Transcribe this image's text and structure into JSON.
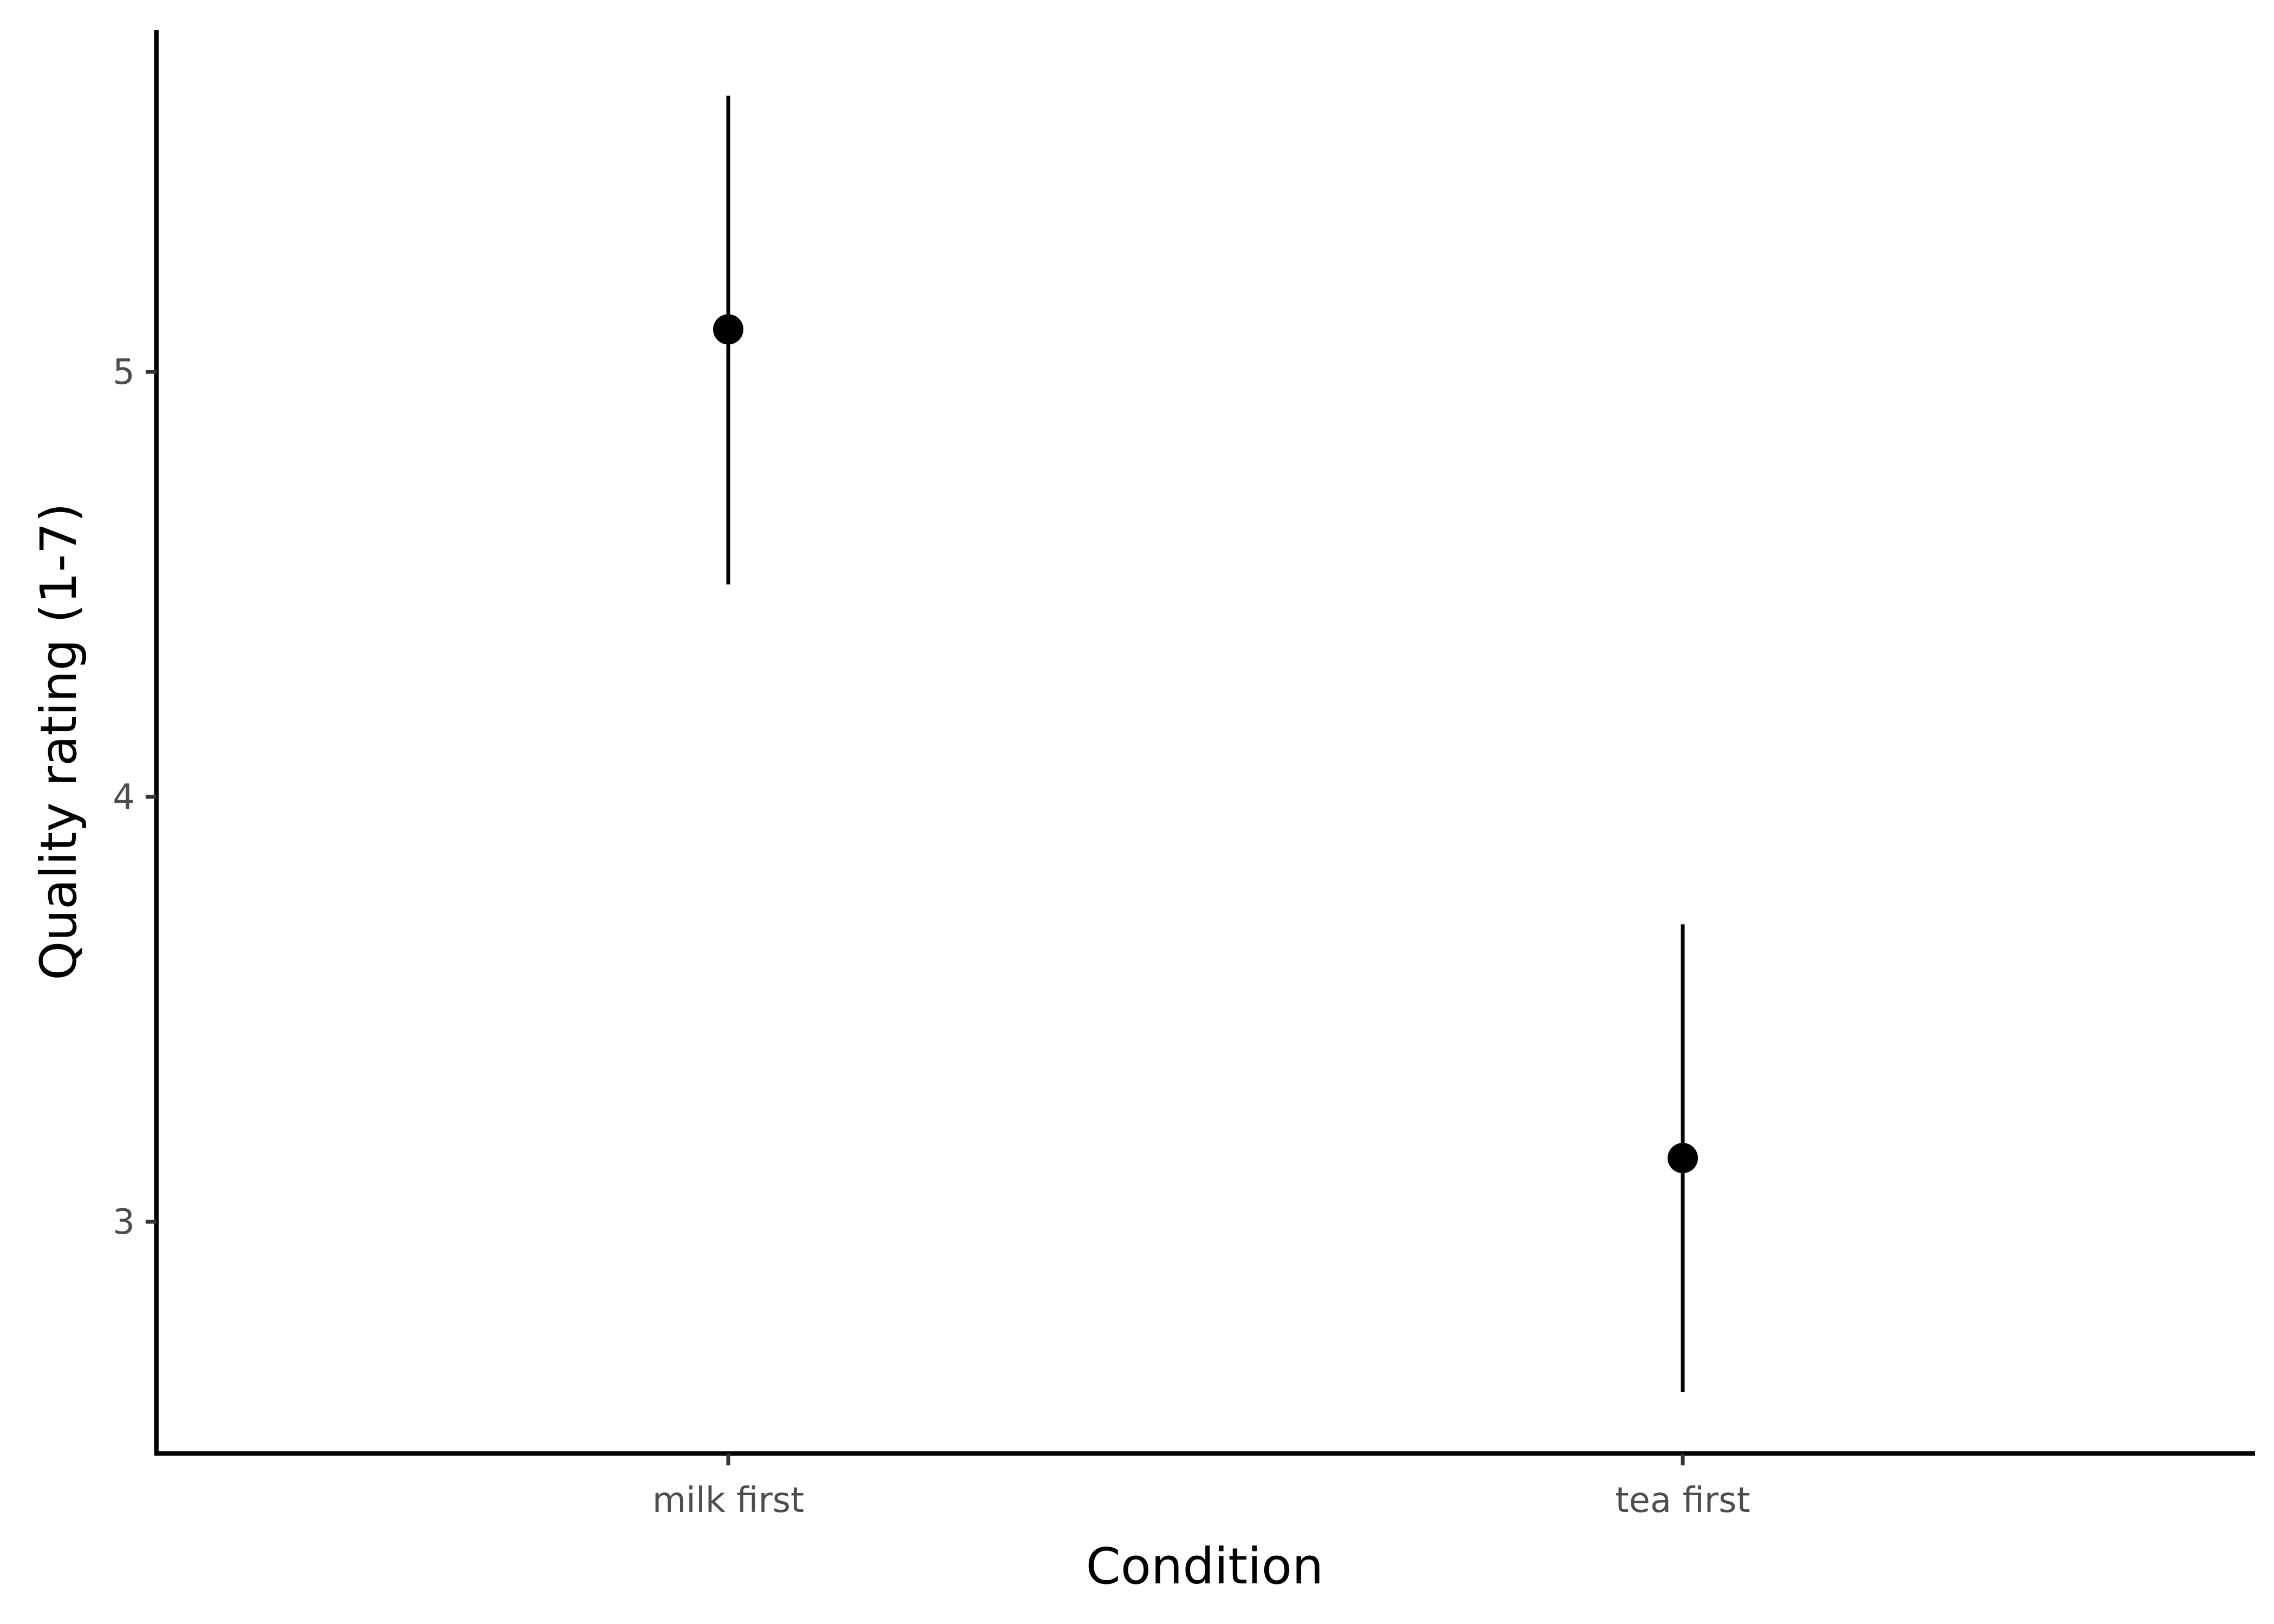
{
  "chart_data": {
    "type": "scatter",
    "title": "",
    "xlabel": "Condition",
    "ylabel": "Quality rating (1-7)",
    "categories": [
      "milk first",
      "tea first"
    ],
    "series": [
      {
        "values": [
          5.1,
          3.15
        ],
        "error_low": [
          4.5,
          2.6
        ],
        "error_high": [
          5.65,
          3.7
        ]
      }
    ],
    "yticks": [
      "3",
      "4",
      "5"
    ],
    "ylim": [
      2.45,
      5.72
    ],
    "grid": false,
    "legend": "none",
    "point_color": "#000000"
  }
}
